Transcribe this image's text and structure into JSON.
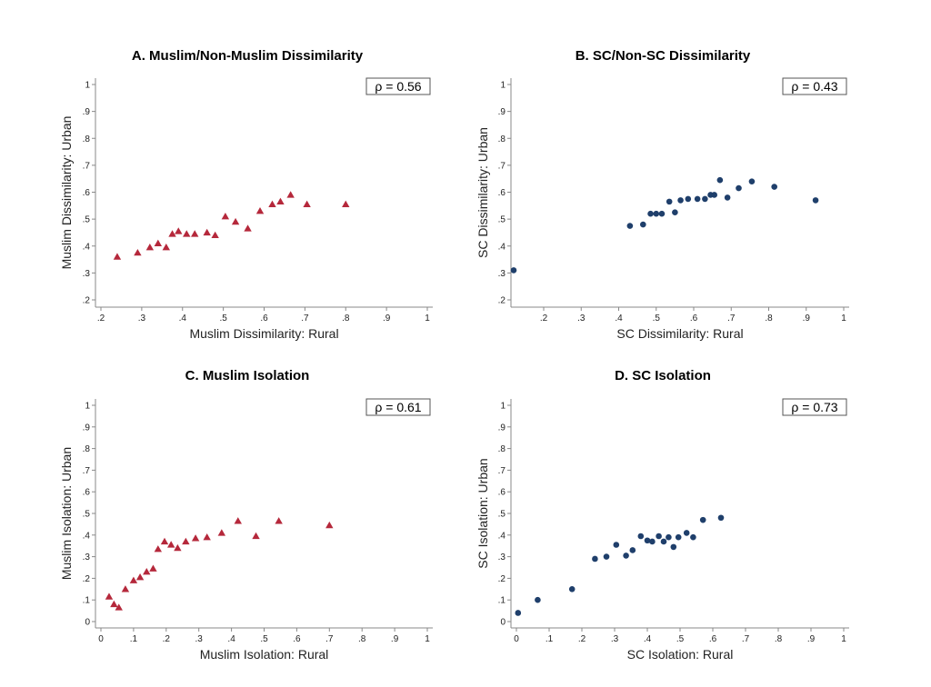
{
  "chart_data": [
    {
      "type": "scatter",
      "id": "A",
      "title": "A. Muslim/Non-Muslim Dissimilarity",
      "xlabel": "Muslim Dissimilarity: Rural",
      "ylabel": "Muslim Dissimilarity: Urban",
      "annotation": "ρ =  0.56",
      "marker": "triangle",
      "color": "#b5283b",
      "xlim": [
        0.2,
        1.0
      ],
      "ylim": [
        0.2,
        1.0
      ],
      "xticks": [
        0.2,
        0.3,
        0.4,
        0.5,
        0.6,
        0.7,
        0.8,
        0.9,
        1.0
      ],
      "xtick_labels": [
        ".2",
        ".3",
        ".4",
        ".5",
        ".6",
        ".7",
        ".8",
        ".9",
        "1"
      ],
      "yticks": [
        0.2,
        0.3,
        0.4,
        0.5,
        0.6,
        0.7,
        0.8,
        0.9,
        1.0
      ],
      "ytick_labels": [
        ".2",
        ".3",
        ".4",
        ".5",
        ".6",
        ".7",
        ".8",
        ".9",
        "1"
      ],
      "grid": false,
      "x": [
        0.24,
        0.29,
        0.32,
        0.34,
        0.36,
        0.375,
        0.39,
        0.41,
        0.43,
        0.46,
        0.48,
        0.505,
        0.53,
        0.56,
        0.59,
        0.62,
        0.64,
        0.665,
        0.705,
        0.8
      ],
      "y": [
        0.36,
        0.375,
        0.395,
        0.41,
        0.395,
        0.445,
        0.455,
        0.445,
        0.445,
        0.45,
        0.44,
        0.51,
        0.49,
        0.465,
        0.53,
        0.555,
        0.565,
        0.59,
        0.555,
        0.555
      ]
    },
    {
      "type": "scatter",
      "id": "B",
      "title": "B. SC/Non-SC Dissimilarity",
      "xlabel": "SC Dissimilarity: Rural",
      "ylabel": "SC Dissimilarity: Urban",
      "annotation": "ρ =  0.43",
      "marker": "circle",
      "color": "#1f3f6b",
      "xlim": [
        0.12,
        1.0
      ],
      "ylim": [
        0.2,
        1.0
      ],
      "xticks": [
        0.2,
        0.3,
        0.4,
        0.5,
        0.6,
        0.7,
        0.8,
        0.9,
        1.0
      ],
      "xtick_labels": [
        ".2",
        ".3",
        ".4",
        ".5",
        ".6",
        ".7",
        ".8",
        ".9",
        "1"
      ],
      "yticks": [
        0.2,
        0.3,
        0.4,
        0.5,
        0.6,
        0.7,
        0.8,
        0.9,
        1.0
      ],
      "ytick_labels": [
        ".2",
        ".3",
        ".4",
        ".5",
        ".6",
        ".7",
        ".8",
        ".9",
        "1"
      ],
      "grid": false,
      "x": [
        0.12,
        0.43,
        0.465,
        0.485,
        0.5,
        0.515,
        0.535,
        0.55,
        0.565,
        0.585,
        0.61,
        0.63,
        0.645,
        0.655,
        0.67,
        0.69,
        0.72,
        0.755,
        0.815,
        0.925
      ],
      "y": [
        0.31,
        0.475,
        0.48,
        0.52,
        0.52,
        0.52,
        0.565,
        0.525,
        0.57,
        0.575,
        0.575,
        0.575,
        0.59,
        0.59,
        0.645,
        0.58,
        0.615,
        0.64,
        0.62,
        0.57
      ]
    },
    {
      "type": "scatter",
      "id": "C",
      "title": "C. Muslim Isolation",
      "xlabel": "Muslim Isolation: Rural",
      "ylabel": "Muslim Isolation: Urban",
      "annotation": "ρ =  0.61",
      "marker": "triangle",
      "color": "#b5283b",
      "xlim": [
        0.0,
        1.0
      ],
      "ylim": [
        0.0,
        1.0
      ],
      "xticks": [
        0,
        0.1,
        0.2,
        0.3,
        0.4,
        0.5,
        0.6,
        0.7,
        0.8,
        0.9,
        1.0
      ],
      "xtick_labels": [
        "0",
        ".1",
        ".2",
        ".3",
        ".4",
        ".5",
        ".6",
        ".7",
        ".8",
        ".9",
        "1"
      ],
      "yticks": [
        0,
        0.1,
        0.2,
        0.3,
        0.4,
        0.5,
        0.6,
        0.7,
        0.8,
        0.9,
        1.0
      ],
      "ytick_labels": [
        "0",
        ".1",
        ".2",
        ".3",
        ".4",
        ".5",
        ".6",
        ".7",
        ".8",
        ".9",
        "1"
      ],
      "grid": false,
      "x": [
        0.025,
        0.04,
        0.055,
        0.075,
        0.1,
        0.12,
        0.14,
        0.16,
        0.175,
        0.195,
        0.215,
        0.235,
        0.26,
        0.29,
        0.325,
        0.37,
        0.42,
        0.475,
        0.545,
        0.7
      ],
      "y": [
        0.115,
        0.08,
        0.065,
        0.15,
        0.19,
        0.205,
        0.23,
        0.245,
        0.335,
        0.37,
        0.355,
        0.34,
        0.37,
        0.385,
        0.39,
        0.41,
        0.465,
        0.395,
        0.465,
        0.445
      ]
    },
    {
      "type": "scatter",
      "id": "D",
      "title": "D. SC Isolation",
      "xlabel": "SC Isolation: Rural",
      "ylabel": "SC Isolation: Urban",
      "annotation": "ρ =  0.73",
      "marker": "circle",
      "color": "#1f3f6b",
      "xlim": [
        0.0,
        1.0
      ],
      "ylim": [
        0.0,
        1.0
      ],
      "xticks": [
        0,
        0.1,
        0.2,
        0.3,
        0.4,
        0.5,
        0.6,
        0.7,
        0.8,
        0.9,
        1.0
      ],
      "xtick_labels": [
        "0",
        ".1",
        ".2",
        ".3",
        ".4",
        ".5",
        ".6",
        ".7",
        ".8",
        ".9",
        "1"
      ],
      "yticks": [
        0,
        0.1,
        0.2,
        0.3,
        0.4,
        0.5,
        0.6,
        0.7,
        0.8,
        0.9,
        1.0
      ],
      "ytick_labels": [
        "0",
        ".1",
        ".2",
        ".3",
        ".4",
        ".5",
        ".6",
        ".7",
        ".8",
        ".9",
        "1"
      ],
      "grid": false,
      "x": [
        0.005,
        0.065,
        0.17,
        0.24,
        0.275,
        0.305,
        0.335,
        0.355,
        0.38,
        0.4,
        0.415,
        0.435,
        0.45,
        0.465,
        0.48,
        0.495,
        0.52,
        0.54,
        0.57,
        0.625
      ],
      "y": [
        0.04,
        0.1,
        0.15,
        0.29,
        0.3,
        0.355,
        0.305,
        0.33,
        0.395,
        0.375,
        0.37,
        0.395,
        0.37,
        0.39,
        0.345,
        0.39,
        0.41,
        0.39,
        0.47,
        0.48
      ]
    }
  ]
}
